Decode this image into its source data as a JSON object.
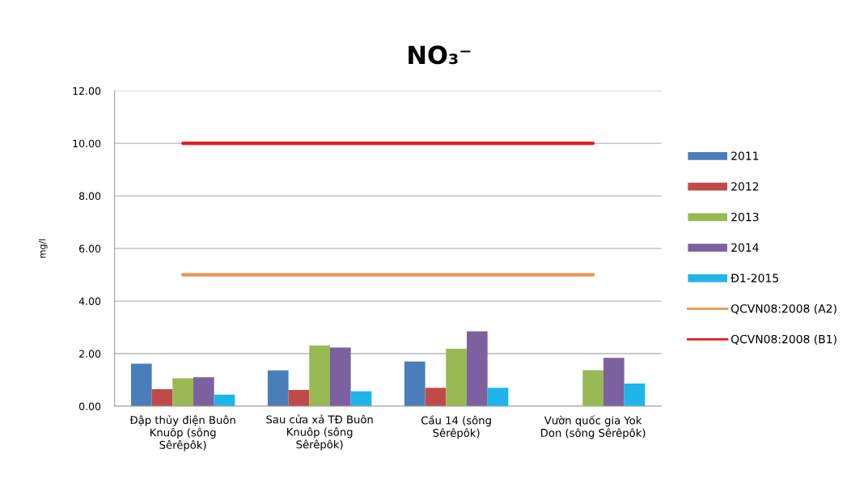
{
  "chart_data": {
    "type": "bar",
    "title": "NO₃⁻",
    "ylabel": "mg/l",
    "categories": [
      "Đập thủy điện Buôn\nKnuôp (sông\nSêrêpôk)",
      "Sau cửa xả TĐ Buôn\nKnuôp (sông\nSêrêpôk)",
      "Cầu 14 (sông\nSêrêpôk)",
      "Vườn quốc gia Yok\nDon (sông Sêrêpôk)"
    ],
    "series": [
      {
        "name": "2011",
        "color": "#4a7ebb",
        "values": [
          1.62,
          1.36,
          1.7,
          null
        ]
      },
      {
        "name": "2012",
        "color": "#be4b48",
        "values": [
          0.65,
          0.62,
          0.7,
          null
        ]
      },
      {
        "name": "2013",
        "color": "#98b954",
        "values": [
          1.06,
          2.31,
          2.19,
          1.37
        ]
      },
      {
        "name": "2014",
        "color": "#7d60a0",
        "values": [
          1.1,
          2.23,
          2.85,
          1.84
        ]
      },
      {
        "name": "Đ1-2015",
        "color": "#1fb5ea",
        "values": [
          0.44,
          0.57,
          0.7,
          0.86
        ]
      },
      {
        "name": "QCVN08:2008 (A2)",
        "type": "line",
        "color": "#e8964f",
        "values": [
          5,
          5,
          5,
          5
        ]
      },
      {
        "name": "QCVN08:2008 (B1)",
        "type": "line",
        "color": "#e02020",
        "values": [
          10,
          10,
          10,
          10
        ]
      }
    ],
    "ylim": [
      0,
      12
    ],
    "yticks": [
      {
        "value": 0,
        "label": "0.00"
      },
      {
        "value": 2,
        "label": "2.00"
      },
      {
        "value": 4,
        "label": "4.00"
      },
      {
        "value": 6,
        "label": "6.00"
      },
      {
        "value": 8,
        "label": "8.00"
      },
      {
        "value": 10,
        "label": "10.00"
      },
      {
        "value": 12,
        "label": "12.00"
      }
    ],
    "grid": "y",
    "legend": "right"
  }
}
